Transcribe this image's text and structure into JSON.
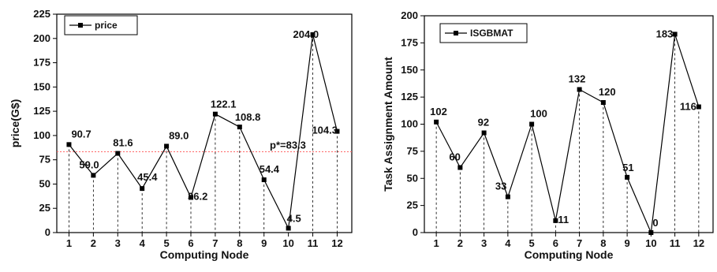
{
  "chart_data": [
    {
      "type": "line",
      "xlabel": "Computing Node",
      "ylabel": "price(G$)",
      "ylim": [
        0,
        225
      ],
      "yticks": [
        0,
        25,
        50,
        75,
        100,
        125,
        150,
        175,
        200,
        225
      ],
      "categories": [
        "1",
        "2",
        "3",
        "4",
        "5",
        "6",
        "7",
        "8",
        "9",
        "10",
        "11",
        "12"
      ],
      "series": [
        {
          "name": "price",
          "values": [
            90.7,
            59.0,
            81.6,
            45.4,
            89.0,
            36.2,
            122.1,
            108.8,
            54.4,
            4.5,
            204.0,
            104.3
          ]
        }
      ],
      "data_labels": [
        "90.7",
        "59.0",
        "81.6",
        "45.4",
        "89.0",
        "36.2",
        "122.1",
        "108.8",
        "54.4",
        "4.5",
        "204.0",
        "104.3"
      ],
      "reference_line": {
        "value": 83.3,
        "label": "p*=83.3",
        "color": "#ff6666"
      },
      "legend": {
        "position": "top-left"
      },
      "drop_lines": true,
      "grid": false
    },
    {
      "type": "line",
      "xlabel": "Computing Node",
      "ylabel": "Task Assignment Amount",
      "ylim": [
        0,
        200
      ],
      "yticks": [
        0,
        25,
        50,
        75,
        100,
        125,
        150,
        175,
        200
      ],
      "categories": [
        "1",
        "2",
        "3",
        "4",
        "5",
        "6",
        "7",
        "8",
        "9",
        "10",
        "11",
        "12"
      ],
      "series": [
        {
          "name": "ISGBMAT",
          "values": [
            102,
            60,
            92,
            33,
            100,
            11,
            132,
            120,
            51,
            0,
            183,
            116
          ]
        }
      ],
      "data_labels": [
        "102",
        "60",
        "92",
        "33",
        "100",
        "11",
        "132",
        "120",
        "51",
        "0",
        "183",
        "116"
      ],
      "legend": {
        "position": "top-left"
      },
      "drop_lines": true,
      "grid": false
    }
  ]
}
